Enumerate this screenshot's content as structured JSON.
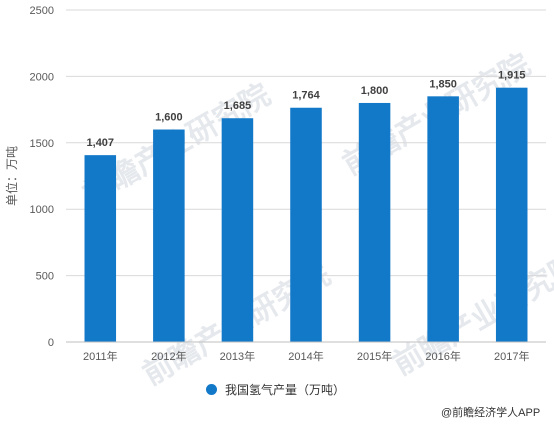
{
  "watermark": "前瞻产业研究院",
  "source_text": "@前瞻经济学人APP",
  "colors": {
    "bar": "#1278c8",
    "grid": "#d9d9d9",
    "axis": "#bfbfbf"
  },
  "chart_data": {
    "type": "bar",
    "categories": [
      "2011年",
      "2012年",
      "2013年",
      "2014年",
      "2015年",
      "2016年",
      "2017年"
    ],
    "series": [
      {
        "name": "我国氢气产量（万吨）",
        "values": [
          1407,
          1600,
          1685,
          1764,
          1800,
          1850,
          1915
        ]
      }
    ],
    "data_labels": [
      "1,407",
      "1,600",
      "1,685",
      "1,764",
      "1,800",
      "1,850",
      "1,915"
    ],
    "ylabel": "单位：万吨",
    "ylim": [
      0,
      2500
    ],
    "yticks": [
      0,
      500,
      1000,
      1500,
      2000,
      2500
    ],
    "grid": true,
    "legend_position": "bottom"
  }
}
